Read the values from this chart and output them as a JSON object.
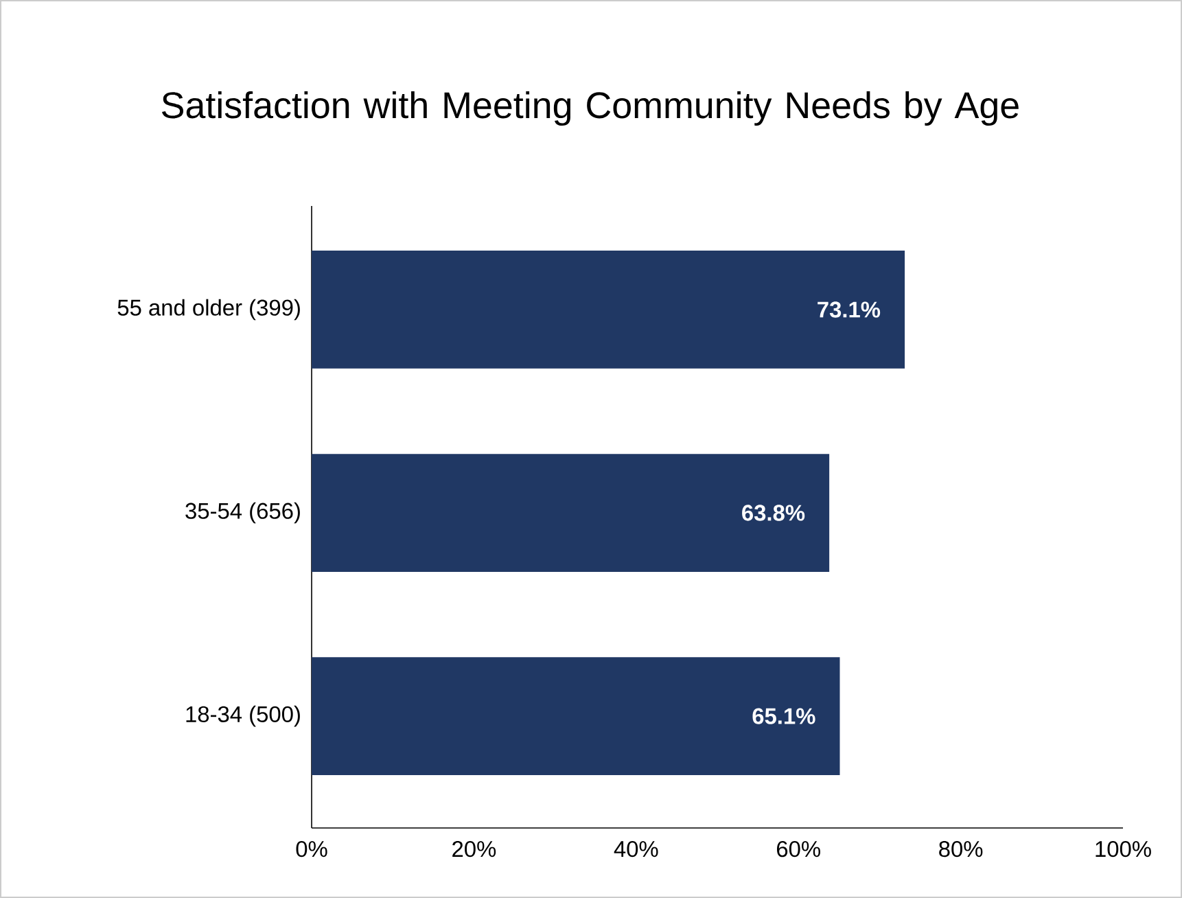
{
  "chart_data": {
    "type": "bar",
    "orientation": "horizontal",
    "title": "Satisfaction with Meeting Community Needs by Age",
    "categories": [
      "55 and older (399)",
      "35-54 (656)",
      "18-34 (500)"
    ],
    "values": [
      73.1,
      63.8,
      65.1
    ],
    "value_labels": [
      "73.1%",
      "63.8%",
      "65.1%"
    ],
    "color": "#203864",
    "xlim": [
      0,
      100
    ],
    "xticks": [
      {
        "value": 0,
        "label": "0%"
      },
      {
        "value": 20,
        "label": "20%"
      },
      {
        "value": 40,
        "label": "40%"
      },
      {
        "value": 60,
        "label": "60%"
      },
      {
        "value": 80,
        "label": "80%"
      },
      {
        "value": 100,
        "label": "100%"
      }
    ]
  }
}
